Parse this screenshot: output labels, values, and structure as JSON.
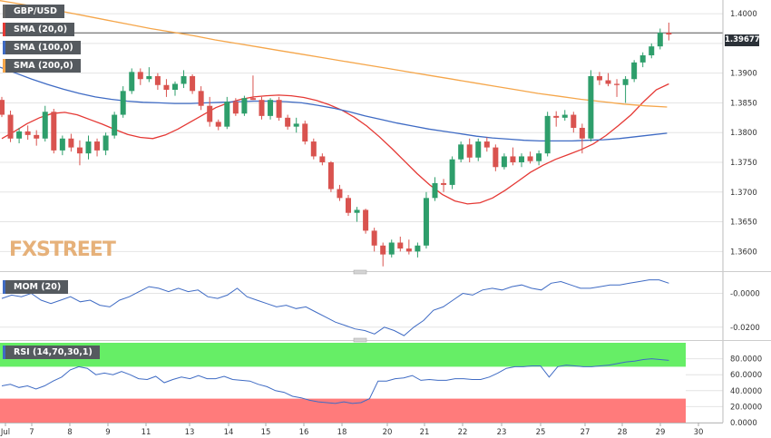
{
  "symbol": "GBP/USD",
  "price_badge": "1.39677",
  "watermark": "FXSTREET",
  "legend": {
    "sma20": {
      "label": "SMA (20,0)",
      "color": "#e53935"
    },
    "sma100": {
      "label": "SMA (100,0)",
      "color": "#3f6bc4"
    },
    "sma200": {
      "label": "SMA (200,0)",
      "color": "#f5a64a"
    }
  },
  "mom_label": "MOM (20)",
  "rsi_label": "RSI (14,70,30,1)",
  "colors": {
    "up": "#2e9e6b",
    "down": "#d9534f",
    "rsi_over": "#66ee66",
    "rsi_under": "#ff7b7b"
  },
  "x_ticks": [
    "Jul",
    "7",
    "8",
    "9",
    "11",
    "13",
    "14",
    "15",
    "16",
    "18",
    "20",
    "21",
    "22",
    "23",
    "25",
    "27",
    "28",
    "29",
    "30"
  ],
  "chart_data": [
    {
      "type": "candlestick",
      "title": "GBP/USD",
      "ylim": [
        1.357,
        1.402
      ],
      "y_ticks": [
        "1.4000",
        "1.3950",
        "1.3900",
        "1.3850",
        "1.3800",
        "1.3750",
        "1.3700",
        "1.3650",
        "1.3600"
      ],
      "current_price": 1.39677,
      "candles": [
        [
          1.3855,
          1.386,
          1.3826,
          1.383
        ],
        [
          1.383,
          1.3837,
          1.3784,
          1.379
        ],
        [
          1.379,
          1.3808,
          1.3782,
          1.3802
        ],
        [
          1.3802,
          1.3812,
          1.3788,
          1.3796
        ],
        [
          1.3796,
          1.3804,
          1.3778,
          1.379
        ],
        [
          1.379,
          1.3845,
          1.3785,
          1.3835
        ],
        [
          1.3835,
          1.384,
          1.3765,
          1.377
        ],
        [
          1.377,
          1.3795,
          1.3762,
          1.379
        ],
        [
          1.379,
          1.3798,
          1.3768,
          1.3775
        ],
        [
          1.3775,
          1.3787,
          1.3745,
          1.3765
        ],
        [
          1.3765,
          1.3795,
          1.3755,
          1.3785
        ],
        [
          1.3785,
          1.379,
          1.376,
          1.377
        ],
        [
          1.377,
          1.38,
          1.3762,
          1.3795
        ],
        [
          1.3795,
          1.3835,
          1.379,
          1.383
        ],
        [
          1.383,
          1.3878,
          1.3825,
          1.387
        ],
        [
          1.387,
          1.3908,
          1.3865,
          1.3902
        ],
        [
          1.3902,
          1.3908,
          1.388,
          1.389
        ],
        [
          1.389,
          1.391,
          1.3885,
          1.3895
        ],
        [
          1.3895,
          1.39,
          1.3872,
          1.388
        ],
        [
          1.388,
          1.389,
          1.386,
          1.3872
        ],
        [
          1.3872,
          1.3886,
          1.3862,
          1.3882
        ],
        [
          1.3882,
          1.3905,
          1.3875,
          1.3895
        ],
        [
          1.3895,
          1.3898,
          1.3865,
          1.387
        ],
        [
          1.387,
          1.3878,
          1.3838,
          1.3845
        ],
        [
          1.3845,
          1.386,
          1.381,
          1.3818
        ],
        [
          1.3818,
          1.3822,
          1.3804,
          1.381
        ],
        [
          1.381,
          1.386,
          1.3806,
          1.3852
        ],
        [
          1.3852,
          1.3858,
          1.3828,
          1.3832
        ],
        [
          1.3832,
          1.3862,
          1.3828,
          1.3858
        ],
        [
          1.3858,
          1.3896,
          1.3855,
          1.3855
        ],
        [
          1.3855,
          1.386,
          1.3822,
          1.3828
        ],
        [
          1.3828,
          1.3858,
          1.3822,
          1.3855
        ],
        [
          1.3855,
          1.386,
          1.382,
          1.3825
        ],
        [
          1.3825,
          1.383,
          1.3805,
          1.381
        ],
        [
          1.381,
          1.3825,
          1.38,
          1.3815
        ],
        [
          1.3815,
          1.382,
          1.378,
          1.3785
        ],
        [
          1.3785,
          1.379,
          1.3755,
          1.376
        ],
        [
          1.376,
          1.3765,
          1.3745,
          1.375
        ],
        [
          1.375,
          1.3752,
          1.37,
          1.3705
        ],
        [
          1.3705,
          1.3712,
          1.3685,
          1.369
        ],
        [
          1.369,
          1.3695,
          1.366,
          1.3665
        ],
        [
          1.3665,
          1.3675,
          1.365,
          1.367
        ],
        [
          1.367,
          1.3672,
          1.363,
          1.3635
        ],
        [
          1.3635,
          1.364,
          1.36,
          1.361
        ],
        [
          1.361,
          1.3615,
          1.3575,
          1.3595
        ],
        [
          1.3595,
          1.362,
          1.359,
          1.3615
        ],
        [
          1.3615,
          1.3625,
          1.36,
          1.3605
        ],
        [
          1.3605,
          1.362,
          1.3595,
          1.36
        ],
        [
          1.36,
          1.3615,
          1.359,
          1.361
        ],
        [
          1.361,
          1.37,
          1.3605,
          1.369
        ],
        [
          1.369,
          1.3725,
          1.3685,
          1.3715
        ],
        [
          1.3715,
          1.3722,
          1.37,
          1.3712
        ],
        [
          1.3712,
          1.376,
          1.3705,
          1.3755
        ],
        [
          1.3755,
          1.3785,
          1.375,
          1.378
        ],
        [
          1.378,
          1.379,
          1.375,
          1.3758
        ],
        [
          1.3758,
          1.379,
          1.3752,
          1.3785
        ],
        [
          1.3785,
          1.3792,
          1.3768,
          1.3775
        ],
        [
          1.3775,
          1.378,
          1.3735,
          1.3742
        ],
        [
          1.3742,
          1.3765,
          1.3738,
          1.376
        ],
        [
          1.376,
          1.3775,
          1.3745,
          1.375
        ],
        [
          1.375,
          1.3765,
          1.3742,
          1.376
        ],
        [
          1.376,
          1.3768,
          1.3748,
          1.3752
        ],
        [
          1.3752,
          1.377,
          1.3745,
          1.3765
        ],
        [
          1.3765,
          1.3835,
          1.376,
          1.3828
        ],
        [
          1.3828,
          1.3836,
          1.381,
          1.3825
        ],
        [
          1.3825,
          1.3838,
          1.382,
          1.383
        ],
        [
          1.383,
          1.3835,
          1.38,
          1.3808
        ],
        [
          1.3808,
          1.3815,
          1.3765,
          1.379
        ],
        [
          1.379,
          1.3905,
          1.3785,
          1.3895
        ],
        [
          1.3895,
          1.3902,
          1.388,
          1.3888
        ],
        [
          1.3888,
          1.39,
          1.3878,
          1.3882
        ],
        [
          1.3882,
          1.389,
          1.386,
          1.388
        ],
        [
          1.388,
          1.3895,
          1.385,
          1.389
        ],
        [
          1.389,
          1.3922,
          1.3885,
          1.3918
        ],
        [
          1.3918,
          1.3935,
          1.391,
          1.393
        ],
        [
          1.393,
          1.395,
          1.3925,
          1.3945
        ],
        [
          1.3945,
          1.3975,
          1.394,
          1.3968
        ],
        [
          1.3968,
          1.3985,
          1.3955,
          1.3965
        ]
      ],
      "series": [
        {
          "name": "SMA (20,0)",
          "values": [
            1.379,
            1.3802,
            1.3815,
            1.3825,
            1.3832,
            1.3834,
            1.383,
            1.3822,
            1.3814,
            1.3805,
            1.3797,
            1.3792,
            1.379,
            1.3796,
            1.3806,
            1.3818,
            1.383,
            1.3842,
            1.385,
            1.3856,
            1.386,
            1.3862,
            1.3863,
            1.3862,
            1.3859,
            1.3854,
            1.3847,
            1.3838,
            1.3826,
            1.3811,
            1.3793,
            1.3773,
            1.3752,
            1.3731,
            1.3712,
            1.3696,
            1.3685,
            1.368,
            1.3682,
            1.369,
            1.3703,
            1.3718,
            1.3733,
            1.3745,
            1.3755,
            1.3763,
            1.3771,
            1.3781,
            1.3795,
            1.3812,
            1.383,
            1.3852,
            1.3872,
            1.3882
          ]
        },
        {
          "name": "SMA (100,0)",
          "values": [
            1.391,
            1.39,
            1.389,
            1.3881,
            1.3873,
            1.3866,
            1.386,
            1.3856,
            1.3853,
            1.3851,
            1.385,
            1.3849,
            1.3849,
            1.385,
            1.3851,
            1.3852,
            1.3853,
            1.3853,
            1.3852,
            1.385,
            1.3846,
            1.3841,
            1.3835,
            1.3828,
            1.3822,
            1.3816,
            1.3811,
            1.3806,
            1.3802,
            1.3798,
            1.3794,
            1.3791,
            1.3789,
            1.3787,
            1.3786,
            1.3786,
            1.3786,
            1.3787,
            1.3788,
            1.379,
            1.3793,
            1.3796,
            1.3799
          ]
        },
        {
          "name": "SMA (200,0)",
          "values": [
            1.4022,
            1.4016,
            1.401,
            1.4003,
            1.3996,
            1.3989,
            1.3982,
            1.3975,
            1.3969,
            1.3963,
            1.3956,
            1.395,
            1.3944,
            1.3938,
            1.3932,
            1.3926,
            1.392,
            1.3914,
            1.3908,
            1.3902,
            1.3896,
            1.389,
            1.3884,
            1.3878,
            1.3872,
            1.3866,
            1.3861,
            1.3856,
            1.3852,
            1.3848,
            1.3845,
            1.3843
          ]
        }
      ]
    },
    {
      "type": "line",
      "title": "MOM (20)",
      "ylim": [
        -0.026,
        0.011
      ],
      "y_ticks": [
        "-0.0000",
        "-0.0200"
      ],
      "series": [
        {
          "name": "MOM (20)",
          "values": [
            -0.003,
            -0.001,
            -0.002,
            0.0,
            -0.004,
            -0.006,
            -0.004,
            -0.002,
            -0.005,
            -0.004,
            -0.007,
            -0.008,
            -0.004,
            -0.002,
            0.001,
            0.004,
            0.003,
            0.001,
            0.003,
            0.001,
            0.002,
            -0.002,
            -0.003,
            -0.001,
            0.003,
            -0.002,
            -0.004,
            -0.006,
            -0.008,
            -0.007,
            -0.009,
            -0.008,
            -0.011,
            -0.014,
            -0.017,
            -0.019,
            -0.021,
            -0.022,
            -0.024,
            -0.02,
            -0.022,
            -0.025,
            -0.02,
            -0.016,
            -0.01,
            -0.008,
            -0.004,
            0.0,
            -0.001,
            0.002,
            0.003,
            0.002,
            0.004,
            0.005,
            0.003,
            0.002,
            0.006,
            0.007,
            0.005,
            0.003,
            0.003,
            0.004,
            0.005,
            0.005,
            0.006,
            0.007,
            0.008,
            0.008,
            0.006
          ]
        }
      ]
    },
    {
      "type": "line",
      "title": "RSI (14,70,30,1)",
      "ylim": [
        0,
        100
      ],
      "y_ticks": [
        "80.0000",
        "60.0000",
        "40.0000",
        "20.0000",
        "0.0000"
      ],
      "zones": {
        "overbought": 70,
        "oversold": 30
      },
      "series": [
        {
          "name": "RSI (14,70,30,1)",
          "values": [
            46,
            48,
            44,
            46,
            42,
            46,
            52,
            57,
            66,
            70,
            68,
            60,
            62,
            60,
            64,
            60,
            55,
            54,
            58,
            50,
            54,
            57,
            55,
            59,
            55,
            55,
            58,
            54,
            53,
            52,
            48,
            45,
            40,
            38,
            33,
            31,
            28,
            26,
            25,
            24,
            26,
            24,
            25,
            30,
            52,
            52,
            55,
            56,
            59,
            53,
            54,
            53,
            53,
            55,
            55,
            54,
            54,
            57,
            62,
            68,
            70,
            70,
            71,
            71,
            57,
            70,
            72,
            71,
            70,
            70,
            71,
            72,
            74,
            76,
            77,
            79,
            80,
            79,
            78
          ]
        }
      ]
    }
  ]
}
